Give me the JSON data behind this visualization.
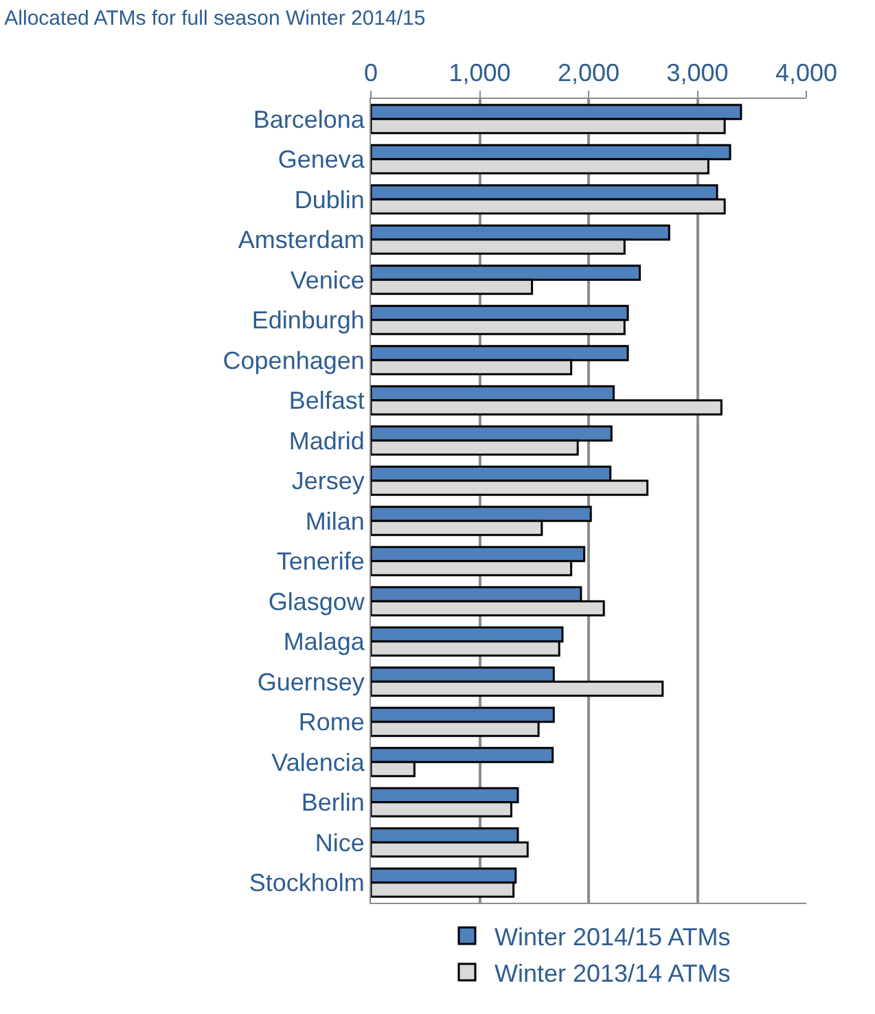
{
  "chart_data": {
    "type": "bar",
    "orientation": "horizontal",
    "title": "Allocated ATMs for full season Winter 2014/15",
    "categories": [
      "Barcelona",
      "Geneva",
      "Dublin",
      "Amsterdam",
      "Venice",
      "Edinburgh",
      "Copenhagen",
      "Belfast",
      "Madrid",
      "Jersey",
      "Milan",
      "Tenerife",
      "Glasgow",
      "Malaga",
      "Guernsey",
      "Rome",
      "Valencia",
      "Berlin",
      "Nice",
      "Stockholm"
    ],
    "series": [
      {
        "name": "Winter 2014/15 ATMs",
        "color": "#4f81bd",
        "values": [
          3400,
          3300,
          3180,
          2740,
          2470,
          2360,
          2360,
          2230,
          2210,
          2200,
          2020,
          1960,
          1930,
          1760,
          1680,
          1680,
          1670,
          1350,
          1350,
          1330
        ]
      },
      {
        "name": "Winter 2013/14 ATMs",
        "color": "#d9d9d9",
        "values": [
          3250,
          3100,
          3250,
          2330,
          1480,
          2330,
          1840,
          3220,
          1900,
          2540,
          1570,
          1840,
          2140,
          1730,
          2680,
          1540,
          400,
          1290,
          1440,
          1310
        ]
      }
    ],
    "xlim": [
      0,
      4000
    ],
    "xticks": [
      {
        "value": 0,
        "label": "0"
      },
      {
        "value": 1000,
        "label": "1,000"
      },
      {
        "value": 2000,
        "label": "2,000"
      },
      {
        "value": 3000,
        "label": "3,000"
      },
      {
        "value": 4000,
        "label": "4,000"
      }
    ],
    "grid": "x",
    "legend": "bottom"
  }
}
